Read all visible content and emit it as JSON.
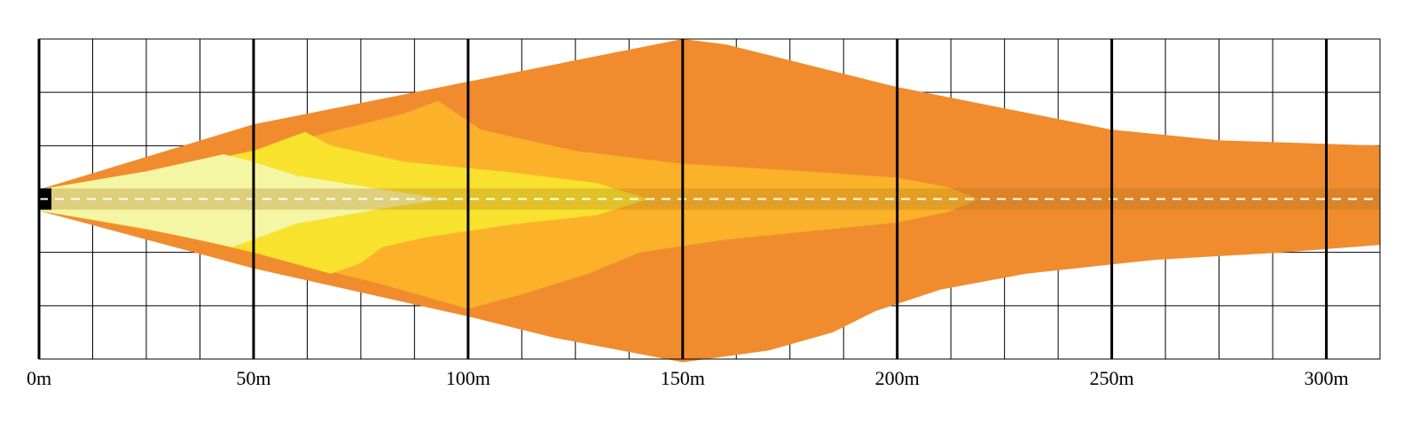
{
  "chart_data": {
    "type": "area",
    "title": "",
    "xlabel": "",
    "ylabel": "",
    "xlim": [
      0,
      312.5
    ],
    "ylim": [
      -15,
      15
    ],
    "grid": true,
    "x_ticks": [
      {
        "value": 0,
        "label": "0m"
      },
      {
        "value": 50,
        "label": "50m"
      },
      {
        "value": 100,
        "label": "100m"
      },
      {
        "value": 150,
        "label": "150m"
      },
      {
        "value": 200,
        "label": "200m"
      },
      {
        "value": 250,
        "label": "250m"
      },
      {
        "value": 300,
        "label": "300m"
      }
    ],
    "minor_x_step": 12.5,
    "y_grid_step": 5,
    "zones": [
      {
        "color": "#f08c2e",
        "points": [
          [
            0,
            0.9
          ],
          [
            50,
            7
          ],
          [
            100,
            11
          ],
          [
            150,
            15
          ],
          [
            160,
            14.5
          ],
          [
            180,
            12.5
          ],
          [
            200,
            10.5
          ],
          [
            225,
            8.5
          ],
          [
            250,
            6.5
          ],
          [
            275,
            5.5
          ],
          [
            312.5,
            5
          ],
          [
            312.5,
            -4.3
          ],
          [
            290,
            -5
          ],
          [
            260,
            -5.7
          ],
          [
            230,
            -7
          ],
          [
            210,
            -8.5
          ],
          [
            195,
            -10.5
          ],
          [
            185,
            -12.5
          ],
          [
            170,
            -14.2
          ],
          [
            150,
            -15.3
          ],
          [
            120,
            -13
          ],
          [
            100,
            -11
          ],
          [
            50,
            -6.5
          ],
          [
            0,
            -1.1
          ]
        ]
      },
      {
        "color": "#fbb22a",
        "points": [
          [
            0,
            0.9
          ],
          [
            35,
            3.2
          ],
          [
            60,
            5.5
          ],
          [
            85,
            8
          ],
          [
            93,
            9.2
          ],
          [
            103,
            6.5
          ],
          [
            125,
            4.5
          ],
          [
            150,
            3.3
          ],
          [
            175,
            2.7
          ],
          [
            200,
            2
          ],
          [
            212,
            1.1
          ],
          [
            219,
            0
          ],
          [
            212,
            -1.2
          ],
          [
            200,
            -2.2
          ],
          [
            180,
            -3
          ],
          [
            160,
            -3.8
          ],
          [
            140,
            -5
          ],
          [
            128,
            -7
          ],
          [
            112,
            -9
          ],
          [
            100,
            -10.3
          ],
          [
            80,
            -8
          ],
          [
            60,
            -6
          ],
          [
            35,
            -3.6
          ],
          [
            0,
            -1.1
          ]
        ]
      },
      {
        "color": "#f8e22e",
        "points": [
          [
            0,
            0.9
          ],
          [
            25,
            2.5
          ],
          [
            50,
            4.5
          ],
          [
            58,
            5.7
          ],
          [
            62,
            6.3
          ],
          [
            68,
            5
          ],
          [
            85,
            3.5
          ],
          [
            110,
            2.5
          ],
          [
            130,
            1.5
          ],
          [
            142,
            0
          ],
          [
            130,
            -1.5
          ],
          [
            110,
            -2.4
          ],
          [
            90,
            -3.6
          ],
          [
            80,
            -4.5
          ],
          [
            75,
            -6
          ],
          [
            68,
            -7
          ],
          [
            50,
            -5
          ],
          [
            25,
            -2.7
          ],
          [
            0,
            -1.1
          ]
        ]
      },
      {
        "color": "#f4f6a4",
        "points": [
          [
            0,
            0.9
          ],
          [
            25,
            2.6
          ],
          [
            43,
            4.2
          ],
          [
            49,
            3.6
          ],
          [
            60,
            2.2
          ],
          [
            80,
            0.9
          ],
          [
            95,
            0
          ],
          [
            80,
            -0.9
          ],
          [
            60,
            -2.3
          ],
          [
            52,
            -3.5
          ],
          [
            45,
            -4.5
          ],
          [
            25,
            -2.8
          ],
          [
            0,
            -1.1
          ]
        ]
      }
    ],
    "center_band": {
      "color": "#a56a16",
      "opacity": 0.28,
      "half_width": 1.0
    },
    "center_line": {
      "color": "#ffffff",
      "dash": true
    },
    "source_marker": {
      "color": "#000000",
      "half_width": 1.0
    }
  }
}
